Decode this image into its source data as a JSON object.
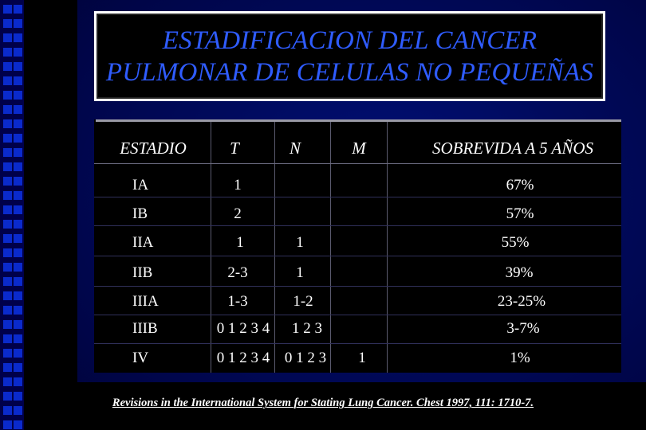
{
  "slide": {
    "title_line1": "ESTADIFICACION DEL CANCER",
    "title_line2": "PULMONAR DE CELULAS NO PEQUEÑAS",
    "citation": "Revisions in the International System for Stating Lung Cancer. Chest 1997, 111: 1710-7."
  },
  "table": {
    "headers": {
      "estadio": "ESTADIO",
      "t": "T",
      "n": "N",
      "m": "M",
      "survival": "SOBREVIDA A 5 AÑOS"
    },
    "rows": [
      {
        "estadio": "IA",
        "t": "1",
        "n": "",
        "m": "",
        "survival": "67%"
      },
      {
        "estadio": "IB",
        "t": "2",
        "n": "",
        "m": "",
        "survival": "57%"
      },
      {
        "estadio": "IIA",
        "t": "1",
        "n": "1",
        "m": "",
        "survival": "55%"
      },
      {
        "estadio": "IIB",
        "t": "2-3",
        "n": "1",
        "m": "",
        "survival": "39%"
      },
      {
        "estadio": "IIIA",
        "t": "1-3",
        "n": "1-2",
        "m": "",
        "survival": "23-25%"
      },
      {
        "estadio": "IIIB",
        "t": "0 1 2 3 4",
        "n": "1 2 3",
        "m": "",
        "survival": "3-7%"
      },
      {
        "estadio": "IV",
        "t": "0 1 2 3 4",
        "n": "0 1 2 3",
        "m": "1",
        "survival": "1%"
      }
    ]
  },
  "colors": {
    "title_text": "#2f5cff",
    "background": "#00107a",
    "stripe": "#0a2acc"
  }
}
